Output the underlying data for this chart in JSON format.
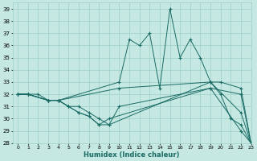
{
  "xlabel": "Humidex (Indice chaleur)",
  "xlim": [
    -0.5,
    23
  ],
  "ylim": [
    28,
    39.5
  ],
  "yticks": [
    28,
    29,
    30,
    31,
    32,
    33,
    34,
    35,
    36,
    37,
    38,
    39
  ],
  "xticks": [
    0,
    1,
    2,
    3,
    4,
    5,
    6,
    7,
    8,
    9,
    10,
    11,
    12,
    13,
    14,
    15,
    16,
    17,
    18,
    19,
    20,
    21,
    22,
    23
  ],
  "xtick_labels": [
    "0",
    "1",
    "2",
    "3",
    "4",
    "5",
    "6",
    "7",
    "8",
    "9",
    "10",
    "11",
    "12",
    "13",
    "14",
    "15",
    "16",
    "17",
    "18",
    "19",
    "20",
    "21",
    "22",
    "23"
  ],
  "bg_color": "#c5e8e2",
  "grid_color": "#9ecfc8",
  "line_color": "#1a6b65",
  "series": [
    {
      "x": [
        0,
        1,
        2,
        3,
        4,
        10,
        11,
        12,
        13,
        14,
        15,
        16,
        17,
        18,
        19,
        20,
        21,
        22,
        23
      ],
      "y": [
        32,
        32,
        32,
        31.5,
        31.5,
        33,
        36.5,
        36,
        37,
        32.5,
        39,
        35,
        36.5,
        35,
        33,
        32,
        30,
        29.5,
        28
      ]
    },
    {
      "x": [
        0,
        1,
        3,
        4,
        10,
        19,
        20,
        22,
        23
      ],
      "y": [
        32,
        32,
        31.5,
        31.5,
        32.5,
        33,
        33,
        32.5,
        28
      ]
    },
    {
      "x": [
        0,
        1,
        3,
        4,
        5,
        6,
        7,
        8,
        9,
        10,
        19,
        22,
        23
      ],
      "y": [
        32,
        32,
        31.5,
        31.5,
        31,
        31,
        30.5,
        30,
        29.5,
        31,
        32.5,
        32,
        28
      ]
    },
    {
      "x": [
        0,
        1,
        3,
        4,
        5,
        6,
        7,
        8,
        9,
        19,
        22,
        23
      ],
      "y": [
        32,
        32,
        31.5,
        31.5,
        31,
        30.5,
        30.2,
        29.5,
        29.5,
        33,
        30.5,
        28
      ]
    },
    {
      "x": [
        0,
        1,
        3,
        4,
        5,
        6,
        7,
        8,
        9,
        19,
        22,
        23
      ],
      "y": [
        32,
        32,
        31.5,
        31.5,
        31,
        30.5,
        30.2,
        29.5,
        30,
        32.5,
        29,
        28
      ]
    }
  ]
}
